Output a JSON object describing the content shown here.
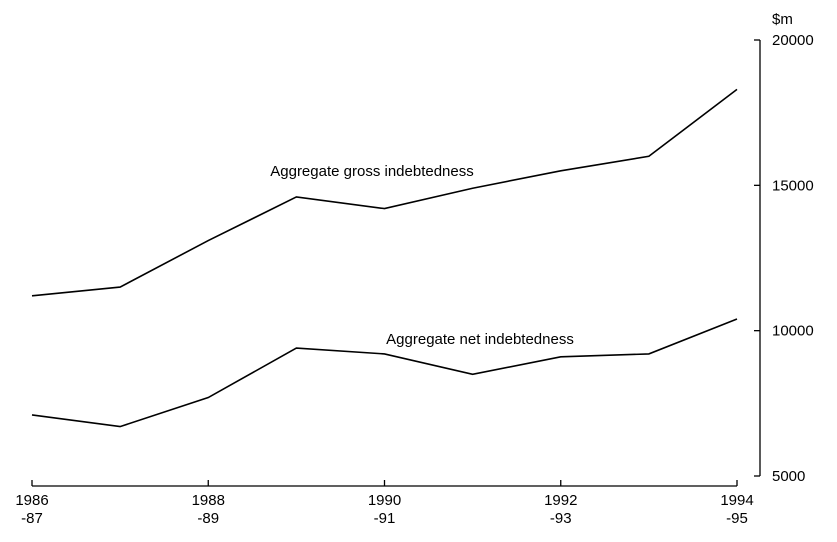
{
  "chart_data": {
    "type": "line",
    "y_unit": "$m",
    "categories": [
      "1986\n-87",
      null,
      "1988\n-89",
      null,
      "1990\n-91",
      null,
      "1992\n-93",
      null,
      "1994\n-95"
    ],
    "series": [
      {
        "name": "Aggregate gross indebtedness",
        "color": "#000000",
        "values": [
          11200,
          11500,
          13100,
          14600,
          14200,
          14900,
          15500,
          16000,
          18300
        ]
      },
      {
        "name": "Aggregate net indebtedness",
        "color": "#000000",
        "values": [
          7100,
          6700,
          7700,
          9400,
          9200,
          8500,
          9100,
          9200,
          10400
        ]
      }
    ],
    "ylim": [
      5000,
      20000
    ],
    "yticks": [
      5000,
      10000,
      15000,
      20000
    ],
    "y_axis_side": "right",
    "grid": false
  }
}
